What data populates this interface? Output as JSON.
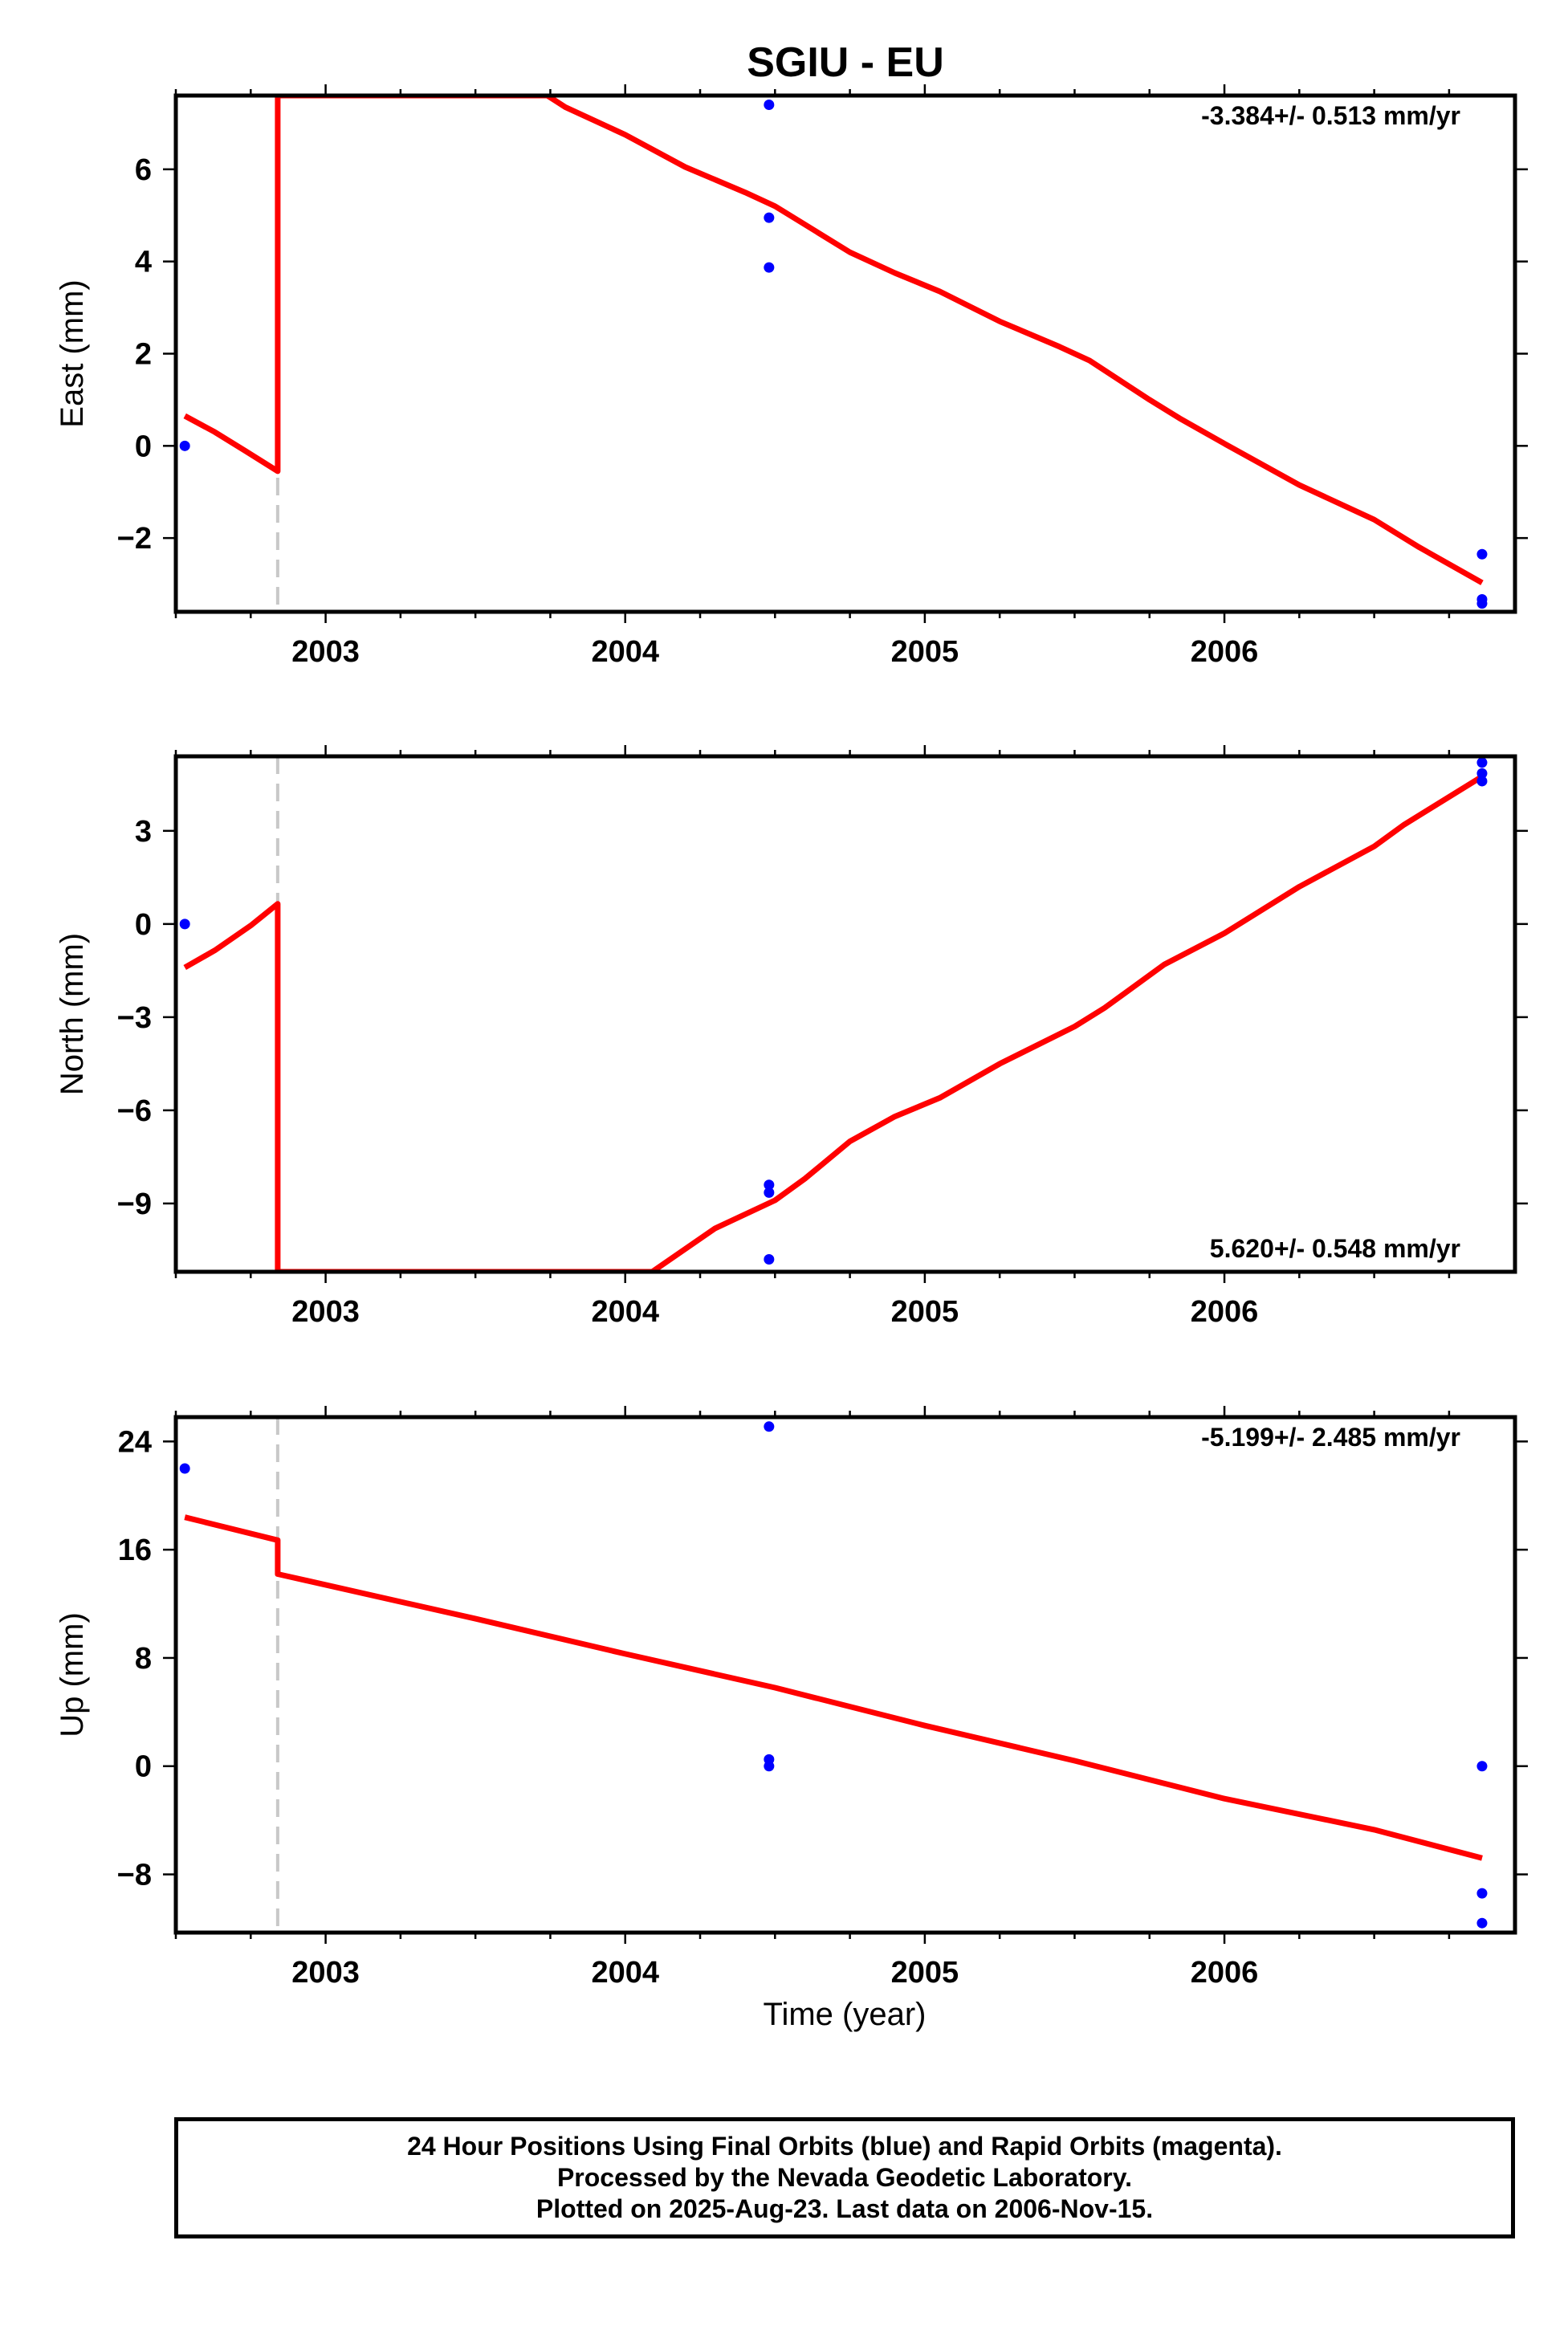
{
  "title": "SGIU - EU",
  "xlabel": "Time (year)",
  "colors": {
    "model": "#ff0000",
    "final_orbits": "#0000ff",
    "offset_line": "#c8c8c8",
    "frame": "#000000"
  },
  "footer": {
    "line1": "24 Hour Positions Using Final Orbits (blue) and Rapid Orbits (magenta).",
    "line2": "Processed by the Nevada Geodetic Laboratory.",
    "line3": "Plotted on 2025-Aug-23. Last data on 2006-Nov-15."
  },
  "chart_data": [
    {
      "type": "scatter",
      "component": "east",
      "ylabel": "East (mm)",
      "rate_label": "-3.384+/- 0.513 mm/yr",
      "rate_position": "top-right",
      "xlim": [
        2002.5,
        2006.97
      ],
      "ylim": [
        -3.6,
        7.6
      ],
      "xticks": [
        "2003",
        "2004",
        "2005",
        "2006"
      ],
      "yticks": [
        "6",
        "4",
        "2",
        "0",
        "−2"
      ],
      "ytick_values": [
        6,
        4,
        2,
        0,
        -2
      ],
      "offset_epoch": 2002.84,
      "points": [
        [
          2002.53,
          0.0
        ],
        [
          2004.48,
          7.4
        ],
        [
          2004.48,
          4.95
        ],
        [
          2004.48,
          3.87
        ],
        [
          2006.86,
          -2.35
        ],
        [
          2006.86,
          -3.33
        ],
        [
          2006.86,
          -3.42
        ]
      ],
      "model": [
        [
          2002.53,
          0.65
        ],
        [
          2002.63,
          0.3
        ],
        [
          2002.73,
          -0.1
        ],
        [
          2002.84,
          -0.55
        ],
        [
          2002.84,
          7.6
        ],
        [
          2003.74,
          7.6
        ],
        [
          2003.8,
          7.35
        ],
        [
          2004.0,
          6.75
        ],
        [
          2004.2,
          6.05
        ],
        [
          2004.4,
          5.5
        ],
        [
          2004.5,
          5.2
        ],
        [
          2004.6,
          4.8
        ],
        [
          2004.75,
          4.2
        ],
        [
          2004.9,
          3.75
        ],
        [
          2005.05,
          3.35
        ],
        [
          2005.25,
          2.7
        ],
        [
          2005.45,
          2.15
        ],
        [
          2005.55,
          1.85
        ],
        [
          2005.75,
          1.0
        ],
        [
          2005.85,
          0.6
        ],
        [
          2006.0,
          0.05
        ],
        [
          2006.25,
          -0.85
        ],
        [
          2006.5,
          -1.6
        ],
        [
          2006.65,
          -2.2
        ],
        [
          2006.86,
          -2.97
        ]
      ]
    },
    {
      "type": "scatter",
      "component": "north",
      "ylabel": "North (mm)",
      "rate_label": "5.620+/- 0.548 mm/yr",
      "rate_position": "bottom-right",
      "xlim": [
        2002.5,
        2006.97
      ],
      "ylim": [
        -11.2,
        5.4
      ],
      "xticks": [
        "2003",
        "2004",
        "2005",
        "2006"
      ],
      "yticks": [
        "3",
        "0",
        "−3",
        "−6",
        "−9"
      ],
      "ytick_values": [
        3,
        0,
        -3,
        -6,
        -9
      ],
      "offset_epoch": 2002.84,
      "points": [
        [
          2002.53,
          0.0
        ],
        [
          2004.48,
          -8.4
        ],
        [
          2004.48,
          -8.65
        ],
        [
          2004.48,
          -10.8
        ],
        [
          2006.86,
          5.2
        ],
        [
          2006.86,
          4.85
        ],
        [
          2006.86,
          4.6
        ]
      ],
      "model": [
        [
          2002.53,
          -1.4
        ],
        [
          2002.63,
          -0.85
        ],
        [
          2002.75,
          -0.05
        ],
        [
          2002.84,
          0.65
        ],
        [
          2002.84,
          -11.2
        ],
        [
          2004.09,
          -11.2
        ],
        [
          2004.3,
          -9.8
        ],
        [
          2004.5,
          -8.9
        ],
        [
          2004.6,
          -8.2
        ],
        [
          2004.75,
          -7.0
        ],
        [
          2004.9,
          -6.2
        ],
        [
          2005.05,
          -5.6
        ],
        [
          2005.25,
          -4.5
        ],
        [
          2005.5,
          -3.3
        ],
        [
          2005.6,
          -2.7
        ],
        [
          2005.8,
          -1.3
        ],
        [
          2006.0,
          -0.3
        ],
        [
          2006.25,
          1.2
        ],
        [
          2006.5,
          2.5
        ],
        [
          2006.6,
          3.2
        ],
        [
          2006.86,
          4.75
        ]
      ]
    },
    {
      "type": "scatter",
      "component": "up",
      "ylabel": "Up (mm)",
      "rate_label": "-5.199+/- 2.485 mm/yr",
      "rate_position": "top-right",
      "xlim": [
        2002.5,
        2006.97
      ],
      "ylim": [
        -12.3,
        25.8
      ],
      "xticks": [
        "2003",
        "2004",
        "2005",
        "2006"
      ],
      "yticks": [
        "24",
        "16",
        "8",
        "0",
        "−8"
      ],
      "ytick_values": [
        24,
        16,
        8,
        0,
        -8
      ],
      "offset_epoch": 2002.84,
      "points": [
        [
          2002.53,
          22.0
        ],
        [
          2004.48,
          25.1
        ],
        [
          2004.48,
          0.5
        ],
        [
          2004.48,
          0.0
        ],
        [
          2006.86,
          0.0
        ],
        [
          2006.86,
          -9.4
        ],
        [
          2006.86,
          -11.6
        ]
      ],
      "model": [
        [
          2002.53,
          18.4
        ],
        [
          2002.84,
          16.7
        ],
        [
          2002.84,
          14.2
        ],
        [
          2003.0,
          13.4
        ],
        [
          2003.5,
          10.9
        ],
        [
          2004.0,
          8.3
        ],
        [
          2004.5,
          5.8
        ],
        [
          2005.0,
          3.0
        ],
        [
          2005.5,
          0.4
        ],
        [
          2006.0,
          -2.4
        ],
        [
          2006.5,
          -4.7
        ],
        [
          2006.86,
          -6.8
        ]
      ]
    }
  ]
}
